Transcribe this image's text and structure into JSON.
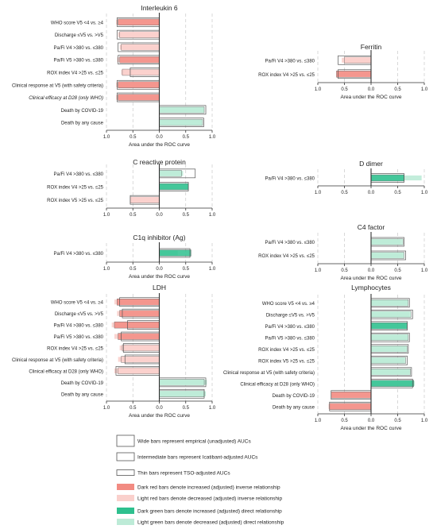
{
  "colors": {
    "dark_red": "#f28b82",
    "light_red": "#fad0cc",
    "dark_green": "#2ec08e",
    "light_green": "#bdebd7",
    "outline": "#555555",
    "axis": "#333333",
    "grid": "#c8c8c8"
  },
  "xlabel": "Area under the ROC curve",
  "ticks": [
    "1.0",
    "0.5",
    "0.0",
    "0.5",
    "1.0"
  ],
  "legend": [
    {
      "kind": "wide",
      "label": "Wide bars represent empirical (unadjusted) AUCs"
    },
    {
      "kind": "intermediate",
      "label": "Intermediate bars represent Icatibant-adjusted AUCs"
    },
    {
      "kind": "thin",
      "label": "Thin bars represent TSO-adjusted AUCs"
    },
    {
      "kind": "dark_red",
      "label": "Dark red bars denote increased (adjusted) inverse relationship"
    },
    {
      "kind": "light_red",
      "label": "Light red bars denote decreased (adjusted) inverse relationship"
    },
    {
      "kind": "dark_green",
      "label": "Dark green bars denote increased (adjusted) direct relationship"
    },
    {
      "kind": "light_green",
      "label": "Light green bars denote decreased (adjusted) direct relationship"
    }
  ],
  "chart_data": [
    {
      "type": "bar",
      "title": "Interleukin 6",
      "xlabel": "Area under the ROC curve",
      "xlim": [
        -1.0,
        1.0
      ],
      "categories": [
        "WHO score V5 <4 vs. ≥4",
        "Discharge ≤V5 vs. >V5",
        "Pa/Fi V4 >380 vs. ≤380",
        "Pa/Fi V5 >380 vs. ≤380",
        "ROX index V4 >25 vs. ≤25",
        "Clinical response at V5 (with safety criteria)",
        "Clinical efficacy at D28 (only WHO)",
        "Death by COVID-19",
        "Death by any cause"
      ],
      "series": [
        {
          "values": [
            -0.8,
            -0.8,
            -0.78,
            -0.78,
            -0.55,
            -0.8,
            -0.8,
            0.88,
            0.84
          ]
        },
        {
          "values": [
            -0.78,
            -0.75,
            -0.72,
            -0.75,
            -0.7,
            -0.78,
            -0.78,
            0.85,
            0.82
          ]
        },
        {
          "values": [
            -0.82,
            -0.78,
            -0.75,
            -0.8,
            -0.72,
            -0.82,
            -0.82,
            0.85,
            0.8
          ]
        }
      ],
      "colors": [
        "dark_red",
        "light_red",
        "light_red",
        "dark_red",
        "light_red",
        "dark_red",
        "dark_red",
        "light_green",
        "light_green"
      ],
      "italic": [
        6
      ]
    },
    {
      "type": "bar",
      "title": "Ferritin",
      "xlabel": "Area under the ROC curve",
      "xlim": [
        -1.0,
        1.0
      ],
      "categories": [
        "Pa/Fi V4 >380 vs. ≤380",
        "ROX index V4 >25 vs. ≤25"
      ],
      "series": [
        {
          "values": [
            -0.62,
            -0.62
          ]
        },
        {
          "values": [
            -0.5,
            -0.65
          ]
        },
        {
          "values": [
            -0.55,
            -0.65
          ]
        }
      ],
      "colors": [
        "light_red",
        "dark_red"
      ],
      "italic": []
    },
    {
      "type": "bar",
      "title": "C reactive protein",
      "xlabel": "",
      "xlim": [
        -1.0,
        1.0
      ],
      "categories": [
        "Pa/Fi V4 >380 vs. ≤380",
        "ROX index V4 >25 vs. ≤25",
        "ROX index V5 >25 vs. ≤25"
      ],
      "series": [
        {
          "values": [
            0.68,
            0.55,
            -0.55
          ]
        },
        {
          "values": [
            0.42,
            0.55,
            -0.55
          ]
        },
        {
          "values": [
            0.45,
            0.55,
            -0.55
          ]
        }
      ],
      "colors": [
        "light_green",
        "dark_green",
        "light_red"
      ],
      "italic": []
    },
    {
      "type": "bar",
      "title": "D dimer",
      "xlabel": "",
      "xlim": [
        -1.0,
        1.0
      ],
      "categories": [
        "Pa/Fi V4 >380 vs. ≤380"
      ],
      "series": [
        {
          "values": [
            0.62
          ]
        },
        {
          "values": [
            0.62
          ]
        },
        {
          "values": [
            0.95
          ]
        }
      ],
      "colors": [
        "dark_green"
      ],
      "italic": []
    },
    {
      "type": "bar",
      "title": "C1q inhibitor (Ag)",
      "xlabel": "Area under the ROC curve",
      "xlim": [
        -1.0,
        1.0
      ],
      "categories": [
        "Pa/Fi V4 >380 vs. ≤380"
      ],
      "series": [
        {
          "values": [
            0.58
          ]
        },
        {
          "values": [
            0.6
          ]
        },
        {
          "values": [
            0.35
          ]
        }
      ],
      "colors": [
        "dark_green"
      ],
      "italic": []
    },
    {
      "type": "bar",
      "title": "C4 factor",
      "xlabel": "Area under the ROC curve",
      "xlim": [
        -1.0,
        1.0
      ],
      "categories": [
        "Pa/Fi V4 >380 vs. ≤380",
        "ROX index V4 >25 vs. ≤25"
      ],
      "series": [
        {
          "values": [
            0.62,
            0.65
          ]
        },
        {
          "values": [
            0.6,
            0.62
          ]
        },
        {
          "values": [
            0.55,
            0.6
          ]
        }
      ],
      "colors": [
        "light_green",
        "light_green"
      ],
      "italic": []
    },
    {
      "type": "bar",
      "title": "LDH",
      "xlabel": "Area under the ROC curve",
      "xlim": [
        -1.0,
        1.0
      ],
      "categories": [
        "WHO score V5 <4 vs. ≥4",
        "Discharge ≤V5 vs. >V5",
        "Pa/Fi V4 >380 vs. ≤380",
        "Pa/Fi V5 >380 vs. ≤380",
        "ROX index V4 >25 vs. ≤25",
        "Clinical response at V5 (with safety criteria)",
        "Clinical efficacy at D28 (only WHO)",
        "Death by COVID-19",
        "Death by any cause"
      ],
      "series": [
        {
          "values": [
            -0.75,
            -0.7,
            -0.6,
            -0.72,
            -0.68,
            -0.65,
            -0.82,
            0.88,
            0.85
          ]
        },
        {
          "values": [
            -0.8,
            -0.75,
            -0.85,
            -0.78,
            -0.7,
            -0.72,
            -0.78,
            0.85,
            0.85
          ]
        },
        {
          "values": [
            -0.85,
            -0.8,
            -0.9,
            -0.85,
            -0.75,
            -0.78,
            -0.85,
            0.9,
            0.88
          ]
        }
      ],
      "colors": [
        "dark_red",
        "dark_red",
        "dark_red",
        "dark_red",
        "light_red",
        "light_red",
        "light_red",
        "light_green",
        "light_green"
      ],
      "italic": []
    },
    {
      "type": "bar",
      "title": "Lymphocytes",
      "xlabel": "Area under the ROC curve",
      "xlim": [
        -1.0,
        1.0
      ],
      "categories": [
        "WHO score V5 <4 vs. ≥4",
        "Discharge ≤V5 vs. >V5",
        "Pa/Fi V4 >380 vs. ≤380",
        "Pa/Fi V5 >380 vs. ≤380",
        "ROX index V4 >25 vs. ≤25",
        "ROX index V5 >25 vs. ≤25",
        "Clinical response at V5 (with safety criteria)",
        "Clinical efficacy at D28 (only WHO)",
        "Death by COVID-19",
        "Death by any cause"
      ],
      "series": [
        {
          "values": [
            0.72,
            0.78,
            0.68,
            0.72,
            0.7,
            0.68,
            0.76,
            0.78,
            -0.75,
            -0.78
          ]
        },
        {
          "values": [
            0.7,
            0.75,
            0.68,
            0.7,
            0.68,
            0.65,
            0.74,
            0.8,
            -0.75,
            -0.78
          ]
        },
        {
          "values": [
            0.68,
            0.72,
            0.65,
            0.68,
            0.65,
            0.62,
            0.72,
            0.82,
            -0.75,
            -0.8
          ]
        }
      ],
      "colors": [
        "light_green",
        "light_green",
        "dark_green",
        "light_green",
        "light_green",
        "light_green",
        "light_green",
        "dark_green",
        "dark_red",
        "dark_red"
      ],
      "italic": []
    }
  ]
}
